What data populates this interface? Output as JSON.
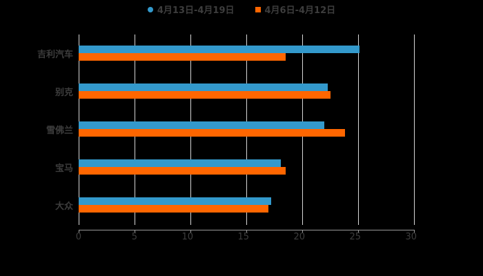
{
  "chart_data": {
    "type": "bar",
    "orientation": "horizontal",
    "title": "",
    "categories": [
      "吉利汽车",
      "别克",
      "雪佛兰",
      "宝马",
      "大众"
    ],
    "series": [
      {
        "name": "4月13日-4月19日",
        "color": "#3399cc",
        "values": [
          25.1,
          22.3,
          22.0,
          18.1,
          17.2
        ]
      },
      {
        "name": "4月6日-4月12日",
        "color": "#ff6600",
        "values": [
          18.5,
          22.5,
          23.8,
          18.5,
          17.0
        ]
      }
    ],
    "xlabel": "",
    "ylabel": "",
    "xlim": [
      0,
      30
    ],
    "xticks": [
      "0",
      "5",
      "10",
      "15",
      "20",
      "25",
      "30"
    ],
    "grid": true,
    "legend_position": "top"
  },
  "legend": [
    {
      "label": "4月13日-4月19日",
      "color": "#3399cc"
    },
    {
      "label": "4月6日-4月12日",
      "color": "#ff6600"
    }
  ]
}
